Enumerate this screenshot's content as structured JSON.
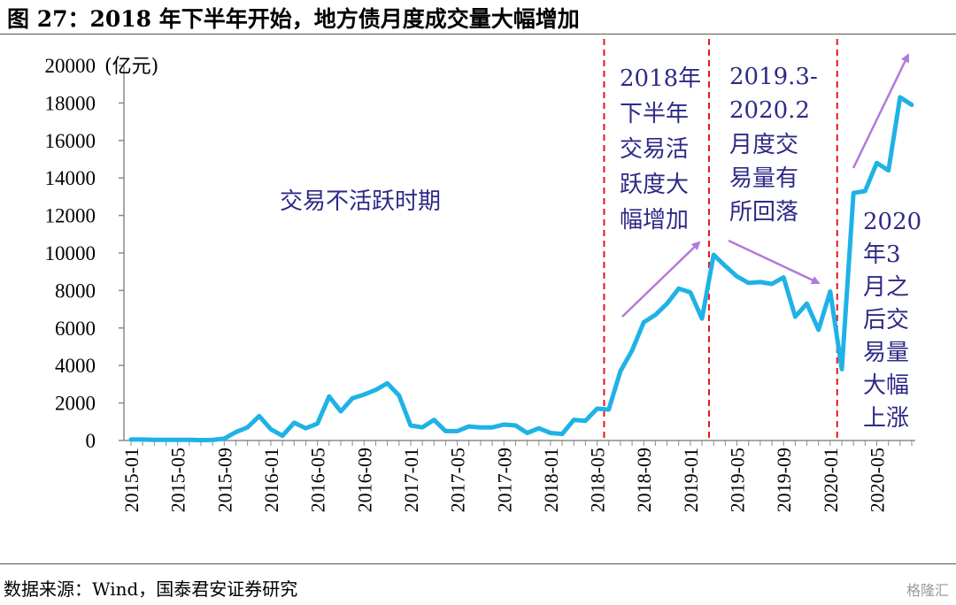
{
  "title": "图 27：2018 年下半年开始，地方债月度成交量大幅增加",
  "source": "数据来源：Wind，国泰君安证券研究",
  "watermark": "格隆汇",
  "chart_data": {
    "type": "line",
    "ylabel": "(亿元)",
    "ylim": [
      0,
      20000
    ],
    "yticks": [
      0,
      2000,
      4000,
      6000,
      8000,
      10000,
      12000,
      14000,
      16000,
      18000,
      20000
    ],
    "x_tick_labels": [
      "2015-01",
      "2015-05",
      "2015-09",
      "2016-01",
      "2016-05",
      "2016-09",
      "2017-01",
      "2017-05",
      "2017-09",
      "2018-01",
      "2018-05",
      "2018-09",
      "2019-01",
      "2019-05",
      "2019-09",
      "2020-01",
      "2020-05"
    ],
    "series": [
      {
        "name": "",
        "color": "#1fb2e6",
        "x": [
          "2015-01",
          "2015-02",
          "2015-03",
          "2015-04",
          "2015-05",
          "2015-06",
          "2015-07",
          "2015-08",
          "2015-09",
          "2015-10",
          "2015-11",
          "2015-12",
          "2016-01",
          "2016-02",
          "2016-03",
          "2016-04",
          "2016-05",
          "2016-06",
          "2016-07",
          "2016-08",
          "2016-09",
          "2016-10",
          "2016-11",
          "2016-12",
          "2017-01",
          "2017-02",
          "2017-03",
          "2017-04",
          "2017-05",
          "2017-06",
          "2017-07",
          "2017-08",
          "2017-09",
          "2017-10",
          "2017-11",
          "2017-12",
          "2018-01",
          "2018-02",
          "2018-03",
          "2018-04",
          "2018-05",
          "2018-06",
          "2018-07",
          "2018-08",
          "2018-09",
          "2018-10",
          "2018-11",
          "2018-12",
          "2019-01",
          "2019-02",
          "2019-03",
          "2019-04",
          "2019-05",
          "2019-06",
          "2019-07",
          "2019-08",
          "2019-09",
          "2019-10",
          "2019-11",
          "2019-12",
          "2020-01",
          "2020-02",
          "2020-03",
          "2020-04",
          "2020-05",
          "2020-06",
          "2020-07",
          "2020-08"
        ],
        "values": [
          50,
          50,
          40,
          40,
          40,
          40,
          20,
          30,
          100,
          450,
          700,
          1300,
          600,
          250,
          950,
          650,
          900,
          2350,
          1550,
          2250,
          2450,
          2700,
          3050,
          2400,
          800,
          700,
          1100,
          500,
          500,
          750,
          700,
          700,
          850,
          800,
          400,
          650,
          400,
          350,
          1100,
          1050,
          1700,
          1650,
          3700,
          4800,
          6300,
          6700,
          7300,
          8100,
          7900,
          6500,
          9900,
          9300,
          8750,
          8400,
          8450,
          8350,
          8700,
          6600,
          7300,
          5900,
          7950,
          3800,
          13200,
          13300,
          14800,
          14400,
          18300,
          17900
        ]
      }
    ],
    "vlines": [
      "2018-06",
      "2019-03",
      "2020-02"
    ],
    "annotations": [
      {
        "text": "交易不活跃时期"
      },
      {
        "lines": [
          "2018年",
          "下半年",
          "交易活",
          "跃度大",
          "幅增加"
        ]
      },
      {
        "lines": [
          "2019.3-",
          "2020.2",
          "月度交",
          "易量有",
          "所回落"
        ]
      },
      {
        "lines": [
          "2020",
          "年3",
          "月之",
          "后交",
          "易量",
          "大幅",
          "上涨"
        ]
      }
    ]
  }
}
